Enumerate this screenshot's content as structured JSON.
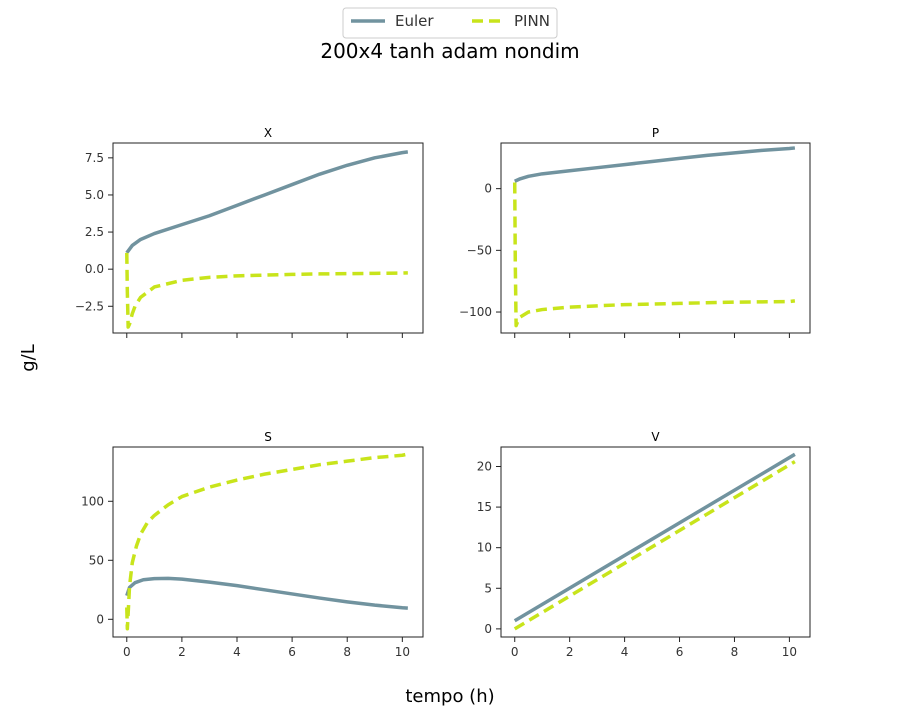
{
  "figure": {
    "suptitle": "200x4 tanh adam nondim",
    "xlabel": "tempo (h)",
    "ylabel": "g/L"
  },
  "legend": {
    "placement": "top-center",
    "entries": [
      {
        "name": "Euler",
        "color": "#71939f",
        "dash": "solid"
      },
      {
        "name": "PINN",
        "color": "#c8e41b",
        "dash": "dashed"
      }
    ]
  },
  "chart_data": [
    {
      "type": "line",
      "title": "X",
      "xlim": [
        -0.5,
        10.75
      ],
      "ylim": [
        -4.3,
        8.5
      ],
      "xticks": [
        0,
        2,
        4,
        6,
        8,
        10
      ],
      "show_xtick_labels": false,
      "yticks": [
        -2.5,
        0.0,
        2.5,
        5.0,
        7.5
      ],
      "ytick_labels": [
        "−2.5",
        "0.0",
        "2.5",
        "5.0",
        "7.5"
      ],
      "series": [
        {
          "name": "Euler",
          "x": [
            0,
            0.2,
            0.5,
            1,
            2,
            3,
            4,
            5,
            6,
            7,
            8,
            9,
            10,
            10.2
          ],
          "y": [
            1.1,
            1.6,
            2.0,
            2.4,
            3.0,
            3.6,
            4.3,
            5.0,
            5.7,
            6.4,
            7.0,
            7.5,
            7.85,
            7.9
          ]
        },
        {
          "name": "PINN",
          "x": [
            0,
            0.02,
            0.05,
            0.1,
            0.2,
            0.3,
            0.5,
            1,
            2,
            3,
            4,
            5,
            6,
            7,
            8,
            9,
            10,
            10.2
          ],
          "y": [
            1.1,
            -1.5,
            -3.9,
            -3.7,
            -3.0,
            -2.5,
            -1.9,
            -1.2,
            -0.75,
            -0.55,
            -0.45,
            -0.4,
            -0.35,
            -0.32,
            -0.3,
            -0.28,
            -0.26,
            -0.25
          ]
        }
      ]
    },
    {
      "type": "line",
      "title": "P",
      "xlim": [
        -0.5,
        10.75
      ],
      "ylim": [
        -117,
        37
      ],
      "xticks": [
        0,
        2,
        4,
        6,
        8,
        10
      ],
      "show_xtick_labels": false,
      "yticks": [
        -100,
        -50,
        0
      ],
      "ytick_labels": [
        "−100",
        "−50",
        "0"
      ],
      "series": [
        {
          "name": "Euler",
          "x": [
            0,
            0.2,
            0.5,
            1,
            2,
            3,
            4,
            5,
            6,
            7,
            8,
            9,
            10,
            10.2
          ],
          "y": [
            6,
            8,
            10,
            12,
            14.5,
            17,
            19.5,
            22,
            24.5,
            27,
            29,
            31,
            32.5,
            33
          ]
        },
        {
          "name": "PINN",
          "x": [
            0,
            0.02,
            0.05,
            0.1,
            0.2,
            0.5,
            1,
            2,
            3,
            4,
            6,
            8,
            10,
            10.2
          ],
          "y": [
            5,
            -60,
            -111,
            -108,
            -104,
            -100,
            -98,
            -96,
            -95,
            -94,
            -93,
            -92,
            -91.5,
            -91
          ]
        }
      ]
    },
    {
      "type": "line",
      "title": "S",
      "xlim": [
        -0.5,
        10.75
      ],
      "ylim": [
        -15,
        146
      ],
      "xticks": [
        0,
        2,
        4,
        6,
        8,
        10
      ],
      "show_xtick_labels": true,
      "xtick_labels": [
        "0",
        "2",
        "4",
        "6",
        "8",
        "10"
      ],
      "yticks": [
        0,
        50,
        100
      ],
      "ytick_labels": [
        "0",
        "50",
        "100"
      ],
      "series": [
        {
          "name": "Euler",
          "x": [
            0,
            0.1,
            0.3,
            0.6,
            1,
            1.5,
            2,
            3,
            4,
            5,
            6,
            7,
            8,
            9,
            10,
            10.2
          ],
          "y": [
            20,
            27,
            31,
            33.5,
            34.5,
            34.7,
            34,
            31.5,
            28.5,
            25,
            21.5,
            18,
            14.8,
            12,
            9.8,
            9.5
          ]
        },
        {
          "name": "PINN",
          "x": [
            0,
            0.02,
            0.05,
            0.1,
            0.2,
            0.35,
            0.5,
            0.75,
            1,
            1.5,
            2,
            3,
            4,
            5,
            6,
            7,
            8,
            9,
            10,
            10.2
          ],
          "y": [
            10,
            -8,
            5,
            28,
            48,
            62,
            72,
            82,
            88,
            97,
            104,
            112,
            118,
            123,
            127,
            131,
            134,
            137,
            139,
            140
          ]
        }
      ]
    },
    {
      "type": "line",
      "title": "V",
      "xlim": [
        -0.5,
        10.75
      ],
      "ylim": [
        -1,
        22.4
      ],
      "xticks": [
        0,
        2,
        4,
        6,
        8,
        10
      ],
      "show_xtick_labels": true,
      "xtick_labels": [
        "0",
        "2",
        "4",
        "6",
        "8",
        "10"
      ],
      "yticks": [
        0,
        5,
        10,
        15,
        20
      ],
      "ytick_labels": [
        "0",
        "5",
        "10",
        "15",
        "20"
      ],
      "series": [
        {
          "name": "Euler",
          "x": [
            0,
            10.2
          ],
          "y": [
            1.0,
            21.5
          ]
        },
        {
          "name": "PINN",
          "x": [
            0,
            10.2
          ],
          "y": [
            0.0,
            20.6
          ]
        }
      ]
    }
  ]
}
